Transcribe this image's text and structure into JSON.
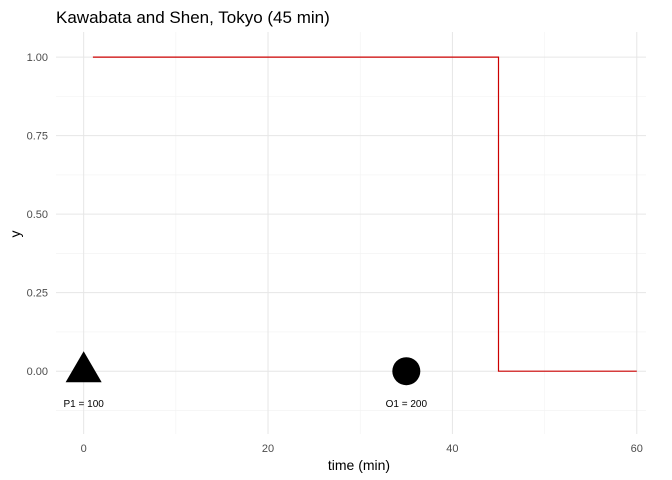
{
  "chart_data": {
    "type": "line",
    "title": "Kawabata and Shen, Tokyo (45 min)",
    "xlabel": "time (min)",
    "ylabel": "y",
    "xlim": [
      -3,
      61
    ],
    "ylim": [
      -0.2,
      1.08
    ],
    "x_ticks": [
      0,
      20,
      40,
      60
    ],
    "x_tick_labels": [
      "0",
      "20",
      "40",
      "60"
    ],
    "y_ticks": [
      0,
      0.25,
      0.5,
      0.75,
      1.0
    ],
    "y_tick_labels": [
      "0.00",
      "0.25",
      "0.50",
      "0.75",
      "1.00"
    ],
    "grid": true,
    "series": [
      {
        "color": "#cc0000",
        "x": [
          1,
          45,
          45,
          60
        ],
        "y": [
          1,
          1,
          0,
          0
        ]
      }
    ],
    "markers": [
      {
        "shape": "triangle",
        "x": 0,
        "y": 0,
        "label": "P1 = 100",
        "color": "#000000"
      },
      {
        "shape": "circle",
        "x": 35,
        "y": 0,
        "label": "O1 = 200",
        "color": "#000000"
      }
    ]
  }
}
